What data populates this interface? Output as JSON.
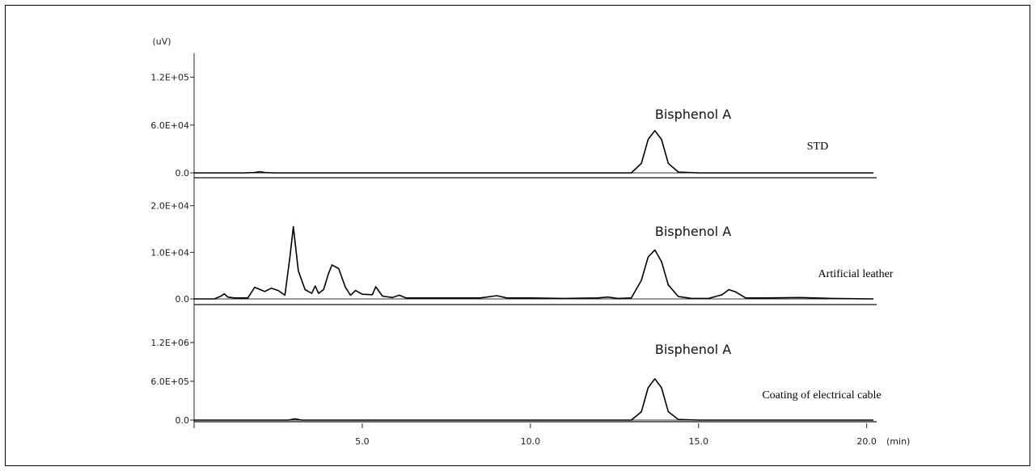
{
  "chart_data": {
    "type": "line",
    "y_unit": "(uV)",
    "x_unit": "(min)",
    "x_ticks": [
      "5.0",
      "10.0",
      "15.0",
      "20.0"
    ],
    "xlim": [
      0,
      20.2
    ],
    "panels": [
      {
        "name": "STD",
        "y_ticks": [
          "1.2E+05",
          "6.0E+04",
          "0.0"
        ],
        "y_tick_values": [
          120000,
          60000,
          0
        ],
        "ylim": [
          0,
          150000
        ],
        "annotation": "Bisphenol A",
        "series": [
          {
            "x": [
              0,
              1.5,
              1.8,
              1.95,
              2.1,
              2.4,
              5,
              9,
              12,
              13.0,
              13.3,
              13.5,
              13.7,
              13.9,
              14.1,
              14.4,
              15.0,
              17,
              20.2
            ],
            "y": [
              0,
              0,
              500,
              1500,
              500,
              0,
              0,
              0,
              0,
              0,
              12000,
              42000,
              53000,
              42000,
              12000,
              1000,
              0,
              0,
              0
            ]
          }
        ]
      },
      {
        "name": "Artificial leather",
        "y_ticks": [
          "2.0E+04",
          "1.0E+04",
          "0.0"
        ],
        "y_tick_values": [
          20000,
          10000,
          0
        ],
        "ylim": [
          -500,
          21500
        ],
        "annotation": "Bisphenol A",
        "series": [
          {
            "x": [
              0,
              0.6,
              0.8,
              0.9,
              1.0,
              1.2,
              1.6,
              1.8,
              1.9,
              2.1,
              2.3,
              2.5,
              2.7,
              2.85,
              2.95,
              3.1,
              3.3,
              3.5,
              3.6,
              3.7,
              3.85,
              4.0,
              4.1,
              4.3,
              4.5,
              4.65,
              4.8,
              5.0,
              5.3,
              5.4,
              5.6,
              5.9,
              6.1,
              6.3,
              7,
              8.5,
              9.0,
              9.3,
              10,
              11,
              12,
              12.3,
              12.6,
              13.0,
              13.3,
              13.5,
              13.7,
              13.9,
              14.1,
              14.4,
              14.8,
              15.3,
              15.7,
              15.9,
              16.1,
              16.4,
              17,
              18,
              19,
              20.2
            ],
            "y": [
              0,
              0,
              600,
              1100,
              400,
              200,
              200,
              2500,
              2200,
              1600,
              2300,
              1800,
              800,
              9000,
              15500,
              6000,
              2000,
              1200,
              2800,
              1200,
              2000,
              5500,
              7300,
              6500,
              2500,
              800,
              1800,
              1000,
              900,
              2600,
              600,
              300,
              800,
              200,
              200,
              200,
              700,
              200,
              200,
              100,
              200,
              400,
              100,
              200,
              4000,
              9000,
              10500,
              8000,
              3000,
              500,
              100,
              100,
              900,
              2000,
              1500,
              200,
              200,
              300,
              100,
              0
            ]
          }
        ]
      },
      {
        "name": "Coating of electrical cable",
        "y_ticks": [
          "1.2E+06",
          "6.0E+05",
          "0.0"
        ],
        "y_tick_values": [
          1200000,
          600000,
          0
        ],
        "ylim": [
          0,
          1500000
        ],
        "annotation": "Bisphenol A",
        "series": [
          {
            "x": [
              0,
              2.8,
              3.0,
              3.2,
              5,
              10,
              12,
              13.0,
              13.3,
              13.5,
              13.7,
              13.9,
              14.1,
              14.4,
              15.0,
              17,
              20.2
            ],
            "y": [
              0,
              0,
              20000,
              0,
              0,
              0,
              0,
              0,
              130000,
              500000,
              640000,
              500000,
              130000,
              10000,
              0,
              0,
              0
            ]
          }
        ]
      }
    ]
  }
}
